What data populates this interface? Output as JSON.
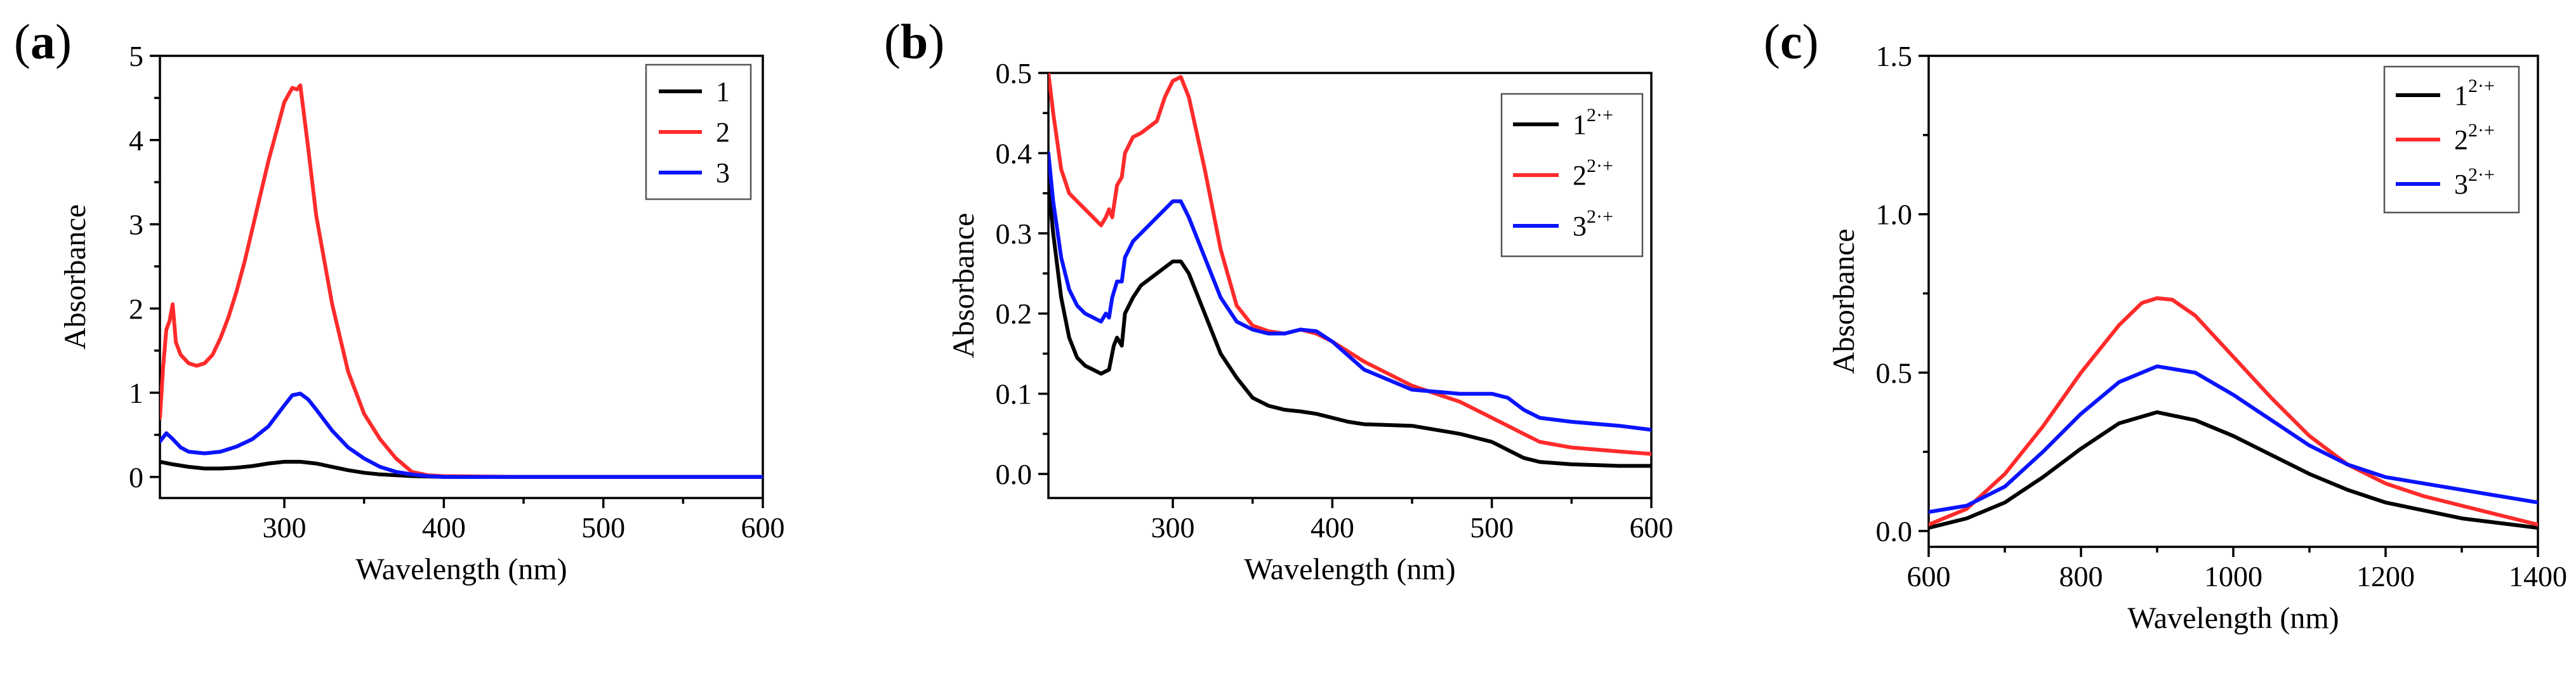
{
  "colors": {
    "series1": "#000000",
    "series2": "#ff2b2b",
    "series3": "#0a14ff"
  },
  "chart_data": [
    {
      "type": "line",
      "panel_label": "(a)",
      "xlabel": "Wavelength (nm)",
      "ylabel": "Absorbance",
      "xlim": [
        222,
        600
      ],
      "ylim": [
        -0.25,
        5
      ],
      "xticks": [
        300,
        400,
        500,
        600
      ],
      "xtick_labels": [
        "300",
        "400",
        "500",
        "600"
      ],
      "yticks": [
        0,
        1,
        2,
        3,
        4,
        5
      ],
      "ytick_labels": [
        "0",
        "1",
        "2",
        "3",
        "4",
        "5"
      ],
      "legend_position": "top-right",
      "series": [
        {
          "name": "1",
          "label_main": "1",
          "label_sup": "",
          "color": "#000000",
          "x": [
            222,
            230,
            240,
            250,
            260,
            270,
            280,
            290,
            300,
            310,
            320,
            330,
            340,
            350,
            360,
            380,
            400,
            450,
            500,
            550,
            600
          ],
          "y": [
            0.18,
            0.15,
            0.12,
            0.1,
            0.1,
            0.11,
            0.13,
            0.16,
            0.18,
            0.18,
            0.16,
            0.12,
            0.08,
            0.05,
            0.03,
            0.01,
            0.0,
            0.0,
            0.0,
            0.0,
            0.0
          ]
        },
        {
          "name": "2",
          "label_main": "2",
          "label_sup": "",
          "color": "#ff2b2b",
          "x": [
            222,
            224,
            226,
            228,
            230,
            232,
            235,
            240,
            245,
            250,
            255,
            260,
            265,
            270,
            275,
            280,
            285,
            290,
            295,
            300,
            305,
            308,
            310,
            312,
            315,
            320,
            330,
            340,
            350,
            360,
            370,
            380,
            390,
            400,
            450,
            500,
            550,
            600
          ],
          "y": [
            0.7,
            1.3,
            1.75,
            1.85,
            2.05,
            1.6,
            1.45,
            1.35,
            1.32,
            1.35,
            1.45,
            1.65,
            1.9,
            2.2,
            2.55,
            2.95,
            3.35,
            3.75,
            4.1,
            4.45,
            4.62,
            4.6,
            4.65,
            4.35,
            3.9,
            3.1,
            2.05,
            1.25,
            0.75,
            0.45,
            0.22,
            0.06,
            0.02,
            0.01,
            0.0,
            0.0,
            0.0,
            0.0
          ]
        },
        {
          "name": "3",
          "label_main": "3",
          "label_sup": "",
          "color": "#0a14ff",
          "x": [
            222,
            226,
            230,
            235,
            240,
            250,
            260,
            270,
            280,
            290,
            300,
            305,
            310,
            315,
            320,
            330,
            340,
            350,
            360,
            370,
            380,
            390,
            400,
            450,
            500,
            550,
            600
          ],
          "y": [
            0.42,
            0.52,
            0.45,
            0.35,
            0.3,
            0.28,
            0.3,
            0.36,
            0.45,
            0.6,
            0.85,
            0.97,
            0.99,
            0.92,
            0.8,
            0.55,
            0.35,
            0.22,
            0.12,
            0.06,
            0.03,
            0.01,
            0.0,
            0.0,
            0.0,
            0.0,
            0.0
          ]
        }
      ]
    },
    {
      "type": "line",
      "panel_label": "(b)",
      "xlabel": "Wavelength (nm)",
      "ylabel": "Absorbance",
      "xlim": [
        222,
        600
      ],
      "ylim": [
        -0.03,
        0.5
      ],
      "xticks": [
        300,
        400,
        500,
        600
      ],
      "xtick_labels": [
        "300",
        "400",
        "500",
        "600"
      ],
      "yticks": [
        0.0,
        0.1,
        0.2,
        0.3,
        0.4,
        0.5
      ],
      "ytick_labels": [
        "0.0",
        "0.1",
        "0.2",
        "0.3",
        "0.4",
        "0.5"
      ],
      "legend_position": "top-right",
      "series": [
        {
          "name": "1 2·+",
          "label_main": "1",
          "label_sup": "2·+",
          "color": "#000000",
          "x": [
            222,
            225,
            230,
            235,
            240,
            245,
            250,
            255,
            260,
            263,
            265,
            268,
            270,
            275,
            280,
            290,
            300,
            305,
            310,
            320,
            330,
            340,
            350,
            360,
            370,
            380,
            390,
            400,
            410,
            420,
            450,
            480,
            500,
            510,
            520,
            530,
            550,
            580,
            600
          ],
          "y": [
            0.36,
            0.3,
            0.22,
            0.17,
            0.145,
            0.135,
            0.13,
            0.125,
            0.13,
            0.16,
            0.17,
            0.16,
            0.2,
            0.22,
            0.235,
            0.25,
            0.265,
            0.265,
            0.25,
            0.2,
            0.15,
            0.12,
            0.095,
            0.085,
            0.08,
            0.078,
            0.075,
            0.07,
            0.065,
            0.062,
            0.06,
            0.05,
            0.04,
            0.03,
            0.02,
            0.015,
            0.012,
            0.01,
            0.01
          ]
        },
        {
          "name": "2 2·+",
          "label_main": "2",
          "label_sup": "2·+",
          "color": "#ff2b2b",
          "x": [
            222,
            225,
            230,
            235,
            240,
            245,
            250,
            255,
            258,
            260,
            262,
            265,
            268,
            270,
            275,
            280,
            290,
            295,
            300,
            305,
            310,
            320,
            330,
            340,
            350,
            360,
            370,
            380,
            390,
            400,
            420,
            450,
            480,
            500,
            510,
            520,
            530,
            550,
            580,
            600
          ],
          "y": [
            0.5,
            0.45,
            0.38,
            0.35,
            0.34,
            0.33,
            0.32,
            0.31,
            0.32,
            0.33,
            0.32,
            0.36,
            0.37,
            0.4,
            0.42,
            0.425,
            0.44,
            0.47,
            0.49,
            0.495,
            0.47,
            0.38,
            0.28,
            0.21,
            0.185,
            0.178,
            0.175,
            0.18,
            0.175,
            0.165,
            0.14,
            0.11,
            0.09,
            0.07,
            0.06,
            0.05,
            0.04,
            0.033,
            0.028,
            0.025
          ]
        },
        {
          "name": "3 2·+",
          "label_main": "3",
          "label_sup": "2·+",
          "color": "#0a14ff",
          "x": [
            222,
            225,
            230,
            235,
            240,
            245,
            250,
            255,
            258,
            260,
            262,
            265,
            268,
            270,
            275,
            280,
            290,
            300,
            305,
            310,
            320,
            330,
            340,
            350,
            360,
            370,
            380,
            390,
            400,
            420,
            450,
            480,
            500,
            510,
            520,
            530,
            550,
            580,
            600
          ],
          "y": [
            0.4,
            0.34,
            0.27,
            0.23,
            0.21,
            0.2,
            0.195,
            0.19,
            0.2,
            0.195,
            0.22,
            0.24,
            0.24,
            0.27,
            0.29,
            0.3,
            0.32,
            0.34,
            0.34,
            0.32,
            0.27,
            0.22,
            0.19,
            0.18,
            0.175,
            0.175,
            0.18,
            0.178,
            0.165,
            0.13,
            0.105,
            0.1,
            0.1,
            0.095,
            0.08,
            0.07,
            0.065,
            0.06,
            0.055
          ]
        }
      ]
    },
    {
      "type": "line",
      "panel_label": "(c)",
      "xlabel": "Wavelength (nm)",
      "ylabel": "Absorbance",
      "xlim": [
        600,
        1400
      ],
      "ylim": [
        -0.05,
        1.5
      ],
      "xticks": [
        600,
        800,
        1000,
        1200,
        1400
      ],
      "xtick_labels": [
        "600",
        "800",
        "1000",
        "1200",
        "1400"
      ],
      "yticks": [
        0.0,
        0.5,
        1.0,
        1.5
      ],
      "ytick_labels": [
        "0.0",
        "0.5",
        "1.0",
        "1.5"
      ],
      "legend_position": "top-right",
      "series": [
        {
          "name": "1 2·+",
          "label_main": "1",
          "label_sup": "2·+",
          "color": "#000000",
          "x": [
            600,
            650,
            700,
            750,
            800,
            850,
            900,
            950,
            1000,
            1050,
            1100,
            1150,
            1200,
            1300,
            1400
          ],
          "y": [
            0.01,
            0.04,
            0.09,
            0.17,
            0.26,
            0.34,
            0.375,
            0.35,
            0.3,
            0.24,
            0.18,
            0.13,
            0.09,
            0.04,
            0.01
          ]
        },
        {
          "name": "2 2·+",
          "label_main": "2",
          "label_sup": "2·+",
          "color": "#ff2b2b",
          "x": [
            600,
            650,
            700,
            750,
            800,
            850,
            880,
            900,
            920,
            950,
            1000,
            1050,
            1100,
            1150,
            1200,
            1250,
            1300,
            1350,
            1400
          ],
          "y": [
            0.02,
            0.07,
            0.18,
            0.33,
            0.5,
            0.65,
            0.72,
            0.735,
            0.73,
            0.68,
            0.55,
            0.42,
            0.3,
            0.21,
            0.15,
            0.11,
            0.08,
            0.05,
            0.02
          ]
        },
        {
          "name": "3 2·+",
          "label_main": "3",
          "label_sup": "2·+",
          "color": "#0a14ff",
          "x": [
            600,
            650,
            700,
            750,
            800,
            850,
            900,
            950,
            1000,
            1050,
            1100,
            1150,
            1200,
            1250,
            1300,
            1350,
            1400
          ],
          "y": [
            0.06,
            0.08,
            0.14,
            0.25,
            0.37,
            0.47,
            0.52,
            0.5,
            0.43,
            0.35,
            0.27,
            0.21,
            0.17,
            0.15,
            0.13,
            0.11,
            0.09
          ]
        }
      ]
    }
  ]
}
